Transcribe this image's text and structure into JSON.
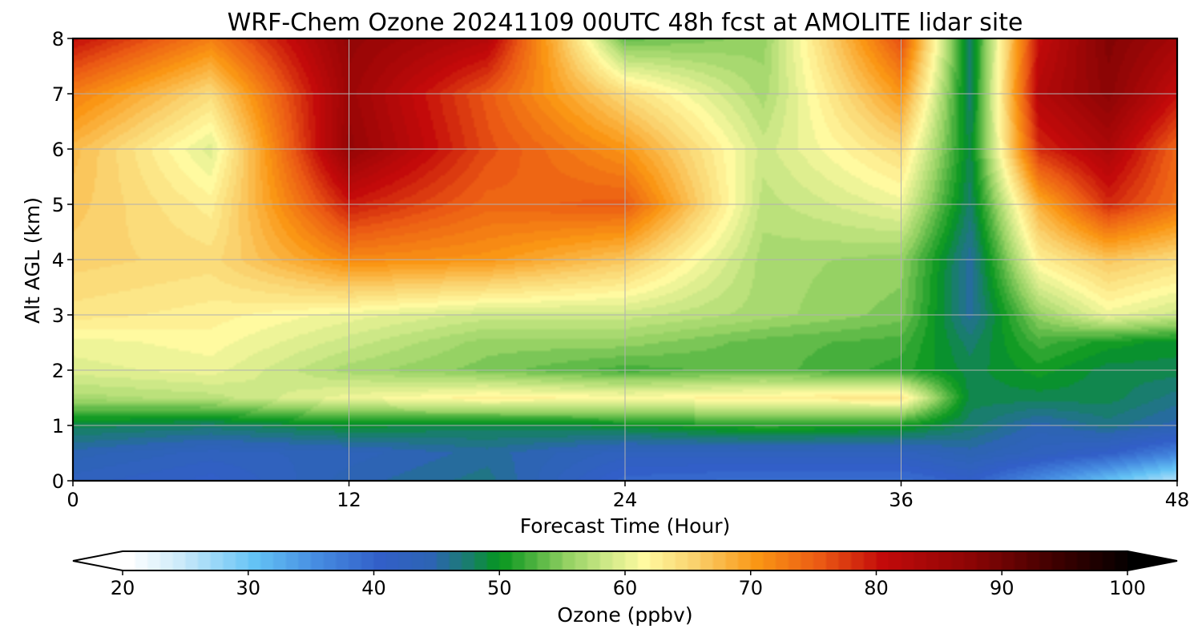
{
  "chart_data": {
    "type": "heatmap",
    "title": "WRF-Chem Ozone  20241109 00UTC 48h fcst at AMOLITE lidar site",
    "xlabel": "Forecast Time (Hour)",
    "ylabel": "Alt AGL (km)",
    "xlim": [
      0,
      48
    ],
    "ylim": [
      0,
      8
    ],
    "x_ticks": [
      "0",
      "12",
      "24",
      "36",
      "48"
    ],
    "y_ticks": [
      "0",
      "1",
      "2",
      "3",
      "4",
      "5",
      "6",
      "7",
      "8"
    ],
    "grid": true,
    "colorbar": {
      "label": "Ozone  (ppbv)",
      "range": [
        20,
        100
      ],
      "ticks": [
        "20",
        "30",
        "40",
        "50",
        "60",
        "70",
        "80",
        "90",
        "100"
      ],
      "extend": "both",
      "orientation": "horizontal",
      "placement": "bottom"
    },
    "x": [
      0,
      6,
      12,
      18,
      24,
      30,
      36,
      39,
      42,
      45,
      48
    ],
    "y": [
      0,
      0.5,
      1,
      1.5,
      2,
      2.5,
      3,
      4,
      5,
      6,
      7,
      8
    ],
    "values": [
      [
        42,
        40,
        44,
        46,
        39,
        38,
        38,
        40,
        35,
        30,
        25
      ],
      [
        44,
        42,
        43,
        45,
        42,
        42,
        42,
        44,
        42,
        40,
        36
      ],
      [
        48,
        47,
        49,
        48,
        49,
        51,
        50,
        47,
        44,
        46,
        44
      ],
      [
        56,
        57,
        60,
        62,
        61,
        62,
        63,
        48,
        48,
        48,
        46
      ],
      [
        59,
        60,
        56,
        54,
        52,
        53,
        51,
        48,
        50,
        48,
        48
      ],
      [
        60,
        61,
        58,
        55,
        55,
        53,
        52,
        47,
        52,
        50,
        49
      ],
      [
        63,
        62,
        60,
        58,
        58,
        56,
        54,
        45,
        55,
        60,
        58
      ],
      [
        65,
        64,
        71,
        70,
        66,
        56,
        55,
        45,
        62,
        66,
        64
      ],
      [
        66,
        62,
        79,
        74,
        75,
        57,
        60,
        47,
        68,
        78,
        73
      ],
      [
        67,
        59,
        86,
        76,
        70,
        58,
        64,
        48,
        78,
        83,
        74
      ],
      [
        72,
        64,
        85,
        75,
        64,
        56,
        70,
        47,
        82,
        87,
        80
      ],
      [
        80,
        72,
        86,
        82,
        53,
        55,
        76,
        47,
        80,
        88,
        84
      ]
    ]
  }
}
